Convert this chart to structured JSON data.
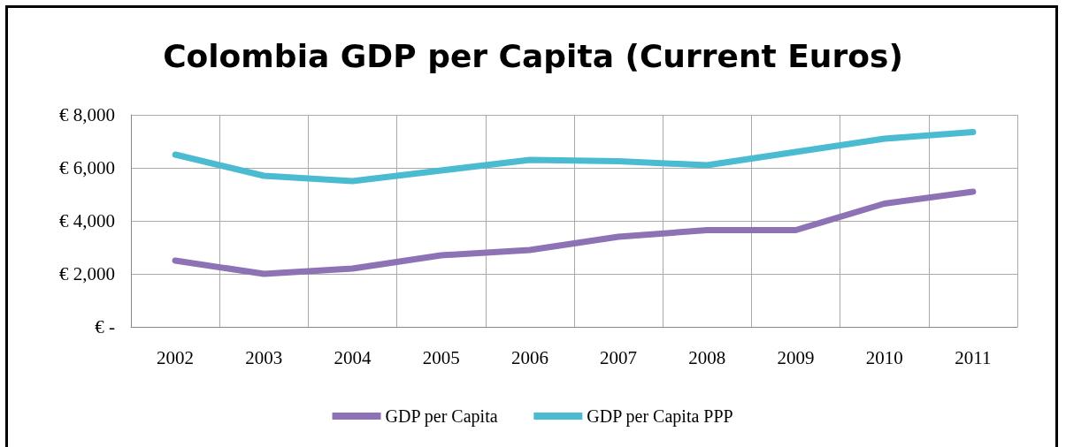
{
  "chart_data": {
    "type": "line",
    "title": "Colombia GDP per Capita (Current Euros)",
    "categories": [
      "2002",
      "2003",
      "2004",
      "2005",
      "2006",
      "2007",
      "2008",
      "2009",
      "2010",
      "2011"
    ],
    "series": [
      {
        "name": "GDP per Capita",
        "color": "#8e72b6",
        "values": [
          2500,
          2000,
          2200,
          2700,
          2900,
          3400,
          3650,
          3650,
          4650,
          5100
        ]
      },
      {
        "name": "GDP per Capita PPP",
        "color": "#4bbbd2",
        "values": [
          6500,
          5700,
          5500,
          5900,
          6300,
          6250,
          6100,
          6600,
          7100,
          7350
        ]
      }
    ],
    "ylim": [
      0,
      8000
    ],
    "yticks": [
      {
        "value": 0,
        "label": "€ -"
      },
      {
        "value": 2000,
        "label": "€ 2,000"
      },
      {
        "value": 4000,
        "label": "€ 4,000"
      },
      {
        "value": 6000,
        "label": "€ 6,000"
      },
      {
        "value": 8000,
        "label": "€ 8,000"
      }
    ],
    "grid": true,
    "legend": "bottom",
    "marker": "none",
    "line_style": "solid"
  }
}
